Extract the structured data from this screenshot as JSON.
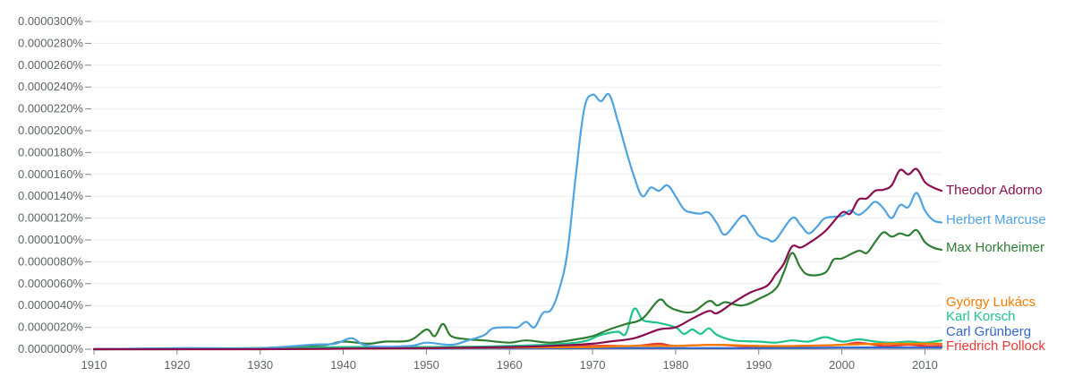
{
  "chart_data": {
    "type": "line",
    "title": "",
    "xlabel": "",
    "ylabel": "",
    "xlim": [
      1910,
      2012
    ],
    "ylim": [
      0,
      3e-05
    ],
    "grid": true,
    "legend": "end-of-line labels",
    "y_ticks": [
      "0.0000000%",
      "0.0000020%",
      "0.0000040%",
      "0.0000060%",
      "0.0000080%",
      "0.0000100%",
      "0.0000120%",
      "0.0000140%",
      "0.0000160%",
      "0.0000180%",
      "0.0000200%",
      "0.0000220%",
      "0.0000240%",
      "0.0000260%",
      "0.0000280%",
      "0.0000300%"
    ],
    "x_ticks": [
      "1910",
      "1920",
      "1930",
      "1940",
      "1950",
      "1960",
      "1970",
      "1980",
      "1990",
      "2000",
      "2010"
    ],
    "series": [
      {
        "name": "Theodor Adorno",
        "color": "#880e4f",
        "points": [
          [
            1910,
            0
          ],
          [
            1930,
            0
          ],
          [
            1940,
            5e-08
          ],
          [
            1950,
            1e-07
          ],
          [
            1960,
            2e-07
          ],
          [
            1965,
            3e-07
          ],
          [
            1970,
            5e-07
          ],
          [
            1972,
            7e-07
          ],
          [
            1975,
            1e-06
          ],
          [
            1978,
            1.8e-06
          ],
          [
            1980,
            2e-06
          ],
          [
            1982,
            2.8e-06
          ],
          [
            1984,
            3.5e-06
          ],
          [
            1985,
            3.3e-06
          ],
          [
            1987,
            4.3e-06
          ],
          [
            1989,
            5.2e-06
          ],
          [
            1991,
            5.8e-06
          ],
          [
            1992,
            6.8e-06
          ],
          [
            1993,
            7.8e-06
          ],
          [
            1994,
            9.4e-06
          ],
          [
            1995,
            9.3e-06
          ],
          [
            1996,
            9.7e-06
          ],
          [
            1998,
            1.08e-05
          ],
          [
            2000,
            1.25e-05
          ],
          [
            2001,
            1.24e-05
          ],
          [
            2002,
            1.37e-05
          ],
          [
            2003,
            1.38e-05
          ],
          [
            2004,
            1.45e-05
          ],
          [
            2005,
            1.46e-05
          ],
          [
            2006,
            1.5e-05
          ],
          [
            2007,
            1.64e-05
          ],
          [
            2008,
            1.6e-05
          ],
          [
            2009,
            1.65e-05
          ],
          [
            2010,
            1.53e-05
          ],
          [
            2011,
            1.48e-05
          ],
          [
            2012,
            1.45e-05
          ]
        ]
      },
      {
        "name": "Herbert Marcuse",
        "color": "#4fa3e0",
        "points": [
          [
            1910,
            0
          ],
          [
            1920,
            1e-07
          ],
          [
            1930,
            1e-07
          ],
          [
            1936,
            4e-07
          ],
          [
            1939,
            5e-07
          ],
          [
            1941,
            1e-06
          ],
          [
            1943,
            3e-07
          ],
          [
            1948,
            3e-07
          ],
          [
            1950,
            6e-07
          ],
          [
            1953,
            4e-07
          ],
          [
            1955,
            8e-07
          ],
          [
            1957,
            1.3e-06
          ],
          [
            1958,
            1.9e-06
          ],
          [
            1960,
            2e-06
          ],
          [
            1961,
            2e-06
          ],
          [
            1962,
            2.5e-06
          ],
          [
            1963,
            2e-06
          ],
          [
            1964,
            3.3e-06
          ],
          [
            1965,
            3.6e-06
          ],
          [
            1966,
            5.5e-06
          ],
          [
            1967,
            9e-06
          ],
          [
            1968,
            1.6e-05
          ],
          [
            1969,
            2.2e-05
          ],
          [
            1970,
            2.33e-05
          ],
          [
            1971,
            2.27e-05
          ],
          [
            1972,
            2.33e-05
          ],
          [
            1973,
            2.1e-05
          ],
          [
            1974,
            1.83e-05
          ],
          [
            1975,
            1.58e-05
          ],
          [
            1976,
            1.4e-05
          ],
          [
            1977,
            1.48e-05
          ],
          [
            1978,
            1.45e-05
          ],
          [
            1979,
            1.5e-05
          ],
          [
            1980,
            1.4e-05
          ],
          [
            1981,
            1.28e-05
          ],
          [
            1982,
            1.25e-05
          ],
          [
            1983,
            1.24e-05
          ],
          [
            1984,
            1.25e-05
          ],
          [
            1985,
            1.15e-05
          ],
          [
            1986,
            1.05e-05
          ],
          [
            1988,
            1.22e-05
          ],
          [
            1989,
            1.15e-05
          ],
          [
            1990,
            1.04e-05
          ],
          [
            1991,
            1.01e-05
          ],
          [
            1992,
            1e-05
          ],
          [
            1994,
            1.2e-05
          ],
          [
            1995,
            1.14e-05
          ],
          [
            1996,
            1.06e-05
          ],
          [
            1997,
            1.12e-05
          ],
          [
            1998,
            1.2e-05
          ],
          [
            2000,
            1.22e-05
          ],
          [
            2001,
            1.27e-05
          ],
          [
            2002,
            1.23e-05
          ],
          [
            2003,
            1.28e-05
          ],
          [
            2004,
            1.35e-05
          ],
          [
            2005,
            1.29e-05
          ],
          [
            2006,
            1.2e-05
          ],
          [
            2007,
            1.32e-05
          ],
          [
            2008,
            1.3e-05
          ],
          [
            2009,
            1.43e-05
          ],
          [
            2010,
            1.27e-05
          ],
          [
            2011,
            1.18e-05
          ],
          [
            2012,
            1.16e-05
          ]
        ]
      },
      {
        "name": "Max Horkheimer",
        "color": "#2e7d32",
        "points": [
          [
            1910,
            0
          ],
          [
            1920,
            0
          ],
          [
            1930,
            1e-07
          ],
          [
            1935,
            3e-07
          ],
          [
            1938,
            4e-07
          ],
          [
            1940,
            7e-07
          ],
          [
            1943,
            5e-07
          ],
          [
            1945,
            7e-07
          ],
          [
            1948,
            8e-07
          ],
          [
            1950,
            1.8e-06
          ],
          [
            1951,
            1.2e-06
          ],
          [
            1952,
            2.3e-06
          ],
          [
            1953,
            1.2e-06
          ],
          [
            1955,
            9e-07
          ],
          [
            1957,
            8e-07
          ],
          [
            1960,
            6e-07
          ],
          [
            1962,
            8e-07
          ],
          [
            1965,
            6e-07
          ],
          [
            1968,
            9e-07
          ],
          [
            1970,
            1.2e-06
          ],
          [
            1972,
            1.8e-06
          ],
          [
            1974,
            2.3e-06
          ],
          [
            1976,
            2.8e-06
          ],
          [
            1978,
            4.5e-06
          ],
          [
            1979,
            4e-06
          ],
          [
            1980,
            3.6e-06
          ],
          [
            1982,
            3.4e-06
          ],
          [
            1984,
            4.4e-06
          ],
          [
            1985,
            4e-06
          ],
          [
            1986,
            4.3e-06
          ],
          [
            1988,
            4e-06
          ],
          [
            1990,
            4.6e-06
          ],
          [
            1992,
            5.5e-06
          ],
          [
            1993,
            7e-06
          ],
          [
            1994,
            8.8e-06
          ],
          [
            1995,
            7.5e-06
          ],
          [
            1996,
            6.8e-06
          ],
          [
            1998,
            7e-06
          ],
          [
            1999,
            8.2e-06
          ],
          [
            2000,
            8.3e-06
          ],
          [
            2002,
            9e-06
          ],
          [
            2003,
            8.8e-06
          ],
          [
            2004,
            9.8e-06
          ],
          [
            2005,
            1.07e-05
          ],
          [
            2006,
            1.03e-05
          ],
          [
            2007,
            1.06e-05
          ],
          [
            2008,
            1.04e-05
          ],
          [
            2009,
            1.09e-05
          ],
          [
            2010,
            9.8e-06
          ],
          [
            2011,
            9.3e-06
          ],
          [
            2012,
            9.1e-06
          ]
        ]
      },
      {
        "name": "György Lukács",
        "color": "#f57c00",
        "points": [
          [
            1910,
            0
          ],
          [
            1930,
            0
          ],
          [
            1950,
            8e-08
          ],
          [
            1960,
            1.5e-07
          ],
          [
            1970,
            2e-07
          ],
          [
            1975,
            3e-07
          ],
          [
            1980,
            3e-07
          ],
          [
            1985,
            4e-07
          ],
          [
            1990,
            3e-07
          ],
          [
            1995,
            3e-07
          ],
          [
            2000,
            4e-07
          ],
          [
            2005,
            5e-07
          ],
          [
            2010,
            5e-07
          ],
          [
            2012,
            5e-07
          ]
        ]
      },
      {
        "name": "Karl Korsch",
        "color": "#1ec38b",
        "points": [
          [
            1910,
            0
          ],
          [
            1930,
            1e-07
          ],
          [
            1940,
            2e-07
          ],
          [
            1950,
            2e-07
          ],
          [
            1960,
            3e-07
          ],
          [
            1968,
            6e-07
          ],
          [
            1971,
            1.3e-06
          ],
          [
            1973,
            1.6e-06
          ],
          [
            1974,
            1.4e-06
          ],
          [
            1975,
            3.7e-06
          ],
          [
            1976,
            2.7e-06
          ],
          [
            1977,
            2.5e-06
          ],
          [
            1978,
            2.4e-06
          ],
          [
            1980,
            2e-06
          ],
          [
            1981,
            1.4e-06
          ],
          [
            1982,
            1.8e-06
          ],
          [
            1983,
            1.4e-06
          ],
          [
            1984,
            1.9e-06
          ],
          [
            1985,
            1.3e-06
          ],
          [
            1987,
            8e-07
          ],
          [
            1990,
            7e-07
          ],
          [
            1992,
            6e-07
          ],
          [
            1994,
            8e-07
          ],
          [
            1996,
            7e-07
          ],
          [
            1998,
            1.1e-06
          ],
          [
            2000,
            7e-07
          ],
          [
            2002,
            9e-07
          ],
          [
            2004,
            7e-07
          ],
          [
            2006,
            6e-07
          ],
          [
            2008,
            7e-07
          ],
          [
            2010,
            6e-07
          ],
          [
            2012,
            8e-07
          ]
        ]
      },
      {
        "name": "Carl Grünberg",
        "color": "#3366cc",
        "points": [
          [
            1910,
            0
          ],
          [
            1930,
            5e-08
          ],
          [
            1950,
            5e-08
          ],
          [
            1970,
            1e-07
          ],
          [
            1980,
            1e-07
          ],
          [
            1990,
            1e-07
          ],
          [
            2000,
            1.5e-07
          ],
          [
            2010,
            1.5e-07
          ],
          [
            2012,
            1.5e-07
          ]
        ]
      },
      {
        "name": "Friedrich Pollock",
        "color": "#e53935",
        "points": [
          [
            1910,
            0
          ],
          [
            1940,
            5e-08
          ],
          [
            1960,
            1.5e-07
          ],
          [
            1970,
            3e-07
          ],
          [
            1975,
            3e-07
          ],
          [
            1978,
            5e-07
          ],
          [
            1980,
            3e-07
          ],
          [
            1985,
            4e-07
          ],
          [
            1990,
            2e-07
          ],
          [
            1995,
            3e-07
          ],
          [
            2000,
            4e-07
          ],
          [
            2002,
            6e-07
          ],
          [
            2005,
            3e-07
          ],
          [
            2008,
            4e-07
          ],
          [
            2010,
            3e-07
          ],
          [
            2012,
            3e-07
          ]
        ]
      }
    ]
  }
}
